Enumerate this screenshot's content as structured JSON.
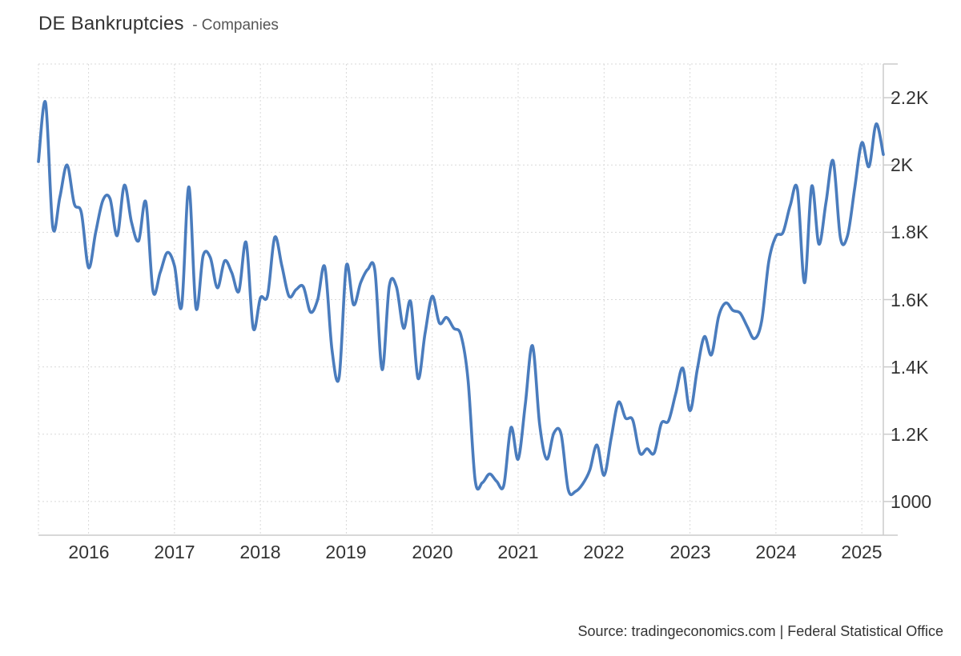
{
  "header": {
    "title": "DE Bankruptcies",
    "subtitle": "- Companies"
  },
  "footer": {
    "source": "Source: tradingeconomics.com | Federal Statistical Office"
  },
  "chart_data": {
    "type": "line",
    "title": "DE Bankruptcies - Companies",
    "legend": "none",
    "grid": "dotted",
    "line_color": "#4a7cbd",
    "axis_color": "#cccccc",
    "grid_color": "#d9d9d9",
    "text_color": "#333333",
    "ylim": [
      900,
      2300
    ],
    "x_range": [
      "2015-06",
      "2025-04"
    ],
    "frequency": "monthly",
    "x_tick_labels": [
      "2016",
      "2017",
      "2018",
      "2019",
      "2020",
      "2021",
      "2022",
      "2023",
      "2024",
      "2025"
    ],
    "y_ticks": [
      {
        "label": "2.2K",
        "value": 2200
      },
      {
        "label": "2K",
        "value": 2000
      },
      {
        "label": "1.8K",
        "value": 1800
      },
      {
        "label": "1.6K",
        "value": 1600
      },
      {
        "label": "1.4K",
        "value": 1400
      },
      {
        "label": "1.2K",
        "value": 1200
      },
      {
        "label": "1000",
        "value": 1000
      }
    ],
    "series": [
      {
        "name": "Companies",
        "start": "2015-06",
        "end": "2025-04",
        "values": [
          2010,
          2185,
          1815,
          1905,
          2000,
          1885,
          1858,
          1695,
          1800,
          1895,
          1900,
          1790,
          1940,
          1830,
          1775,
          1890,
          1625,
          1680,
          1740,
          1700,
          1580,
          1935,
          1575,
          1730,
          1725,
          1635,
          1715,
          1680,
          1625,
          1770,
          1515,
          1605,
          1612,
          1785,
          1700,
          1610,
          1630,
          1638,
          1563,
          1600,
          1697,
          1450,
          1370,
          1700,
          1585,
          1650,
          1690,
          1685,
          1392,
          1640,
          1638,
          1515,
          1593,
          1366,
          1500,
          1610,
          1530,
          1547,
          1515,
          1495,
          1362,
          1062,
          1056,
          1082,
          1060,
          1048,
          1220,
          1126,
          1290,
          1463,
          1230,
          1126,
          1204,
          1200,
          1035,
          1030,
          1052,
          1093,
          1168,
          1078,
          1190,
          1295,
          1248,
          1242,
          1144,
          1157,
          1144,
          1232,
          1240,
          1320,
          1396,
          1270,
          1390,
          1490,
          1436,
          1550,
          1590,
          1568,
          1560,
          1520,
          1484,
          1535,
          1712,
          1788,
          1800,
          1880,
          1928,
          1650,
          1937,
          1765,
          1890,
          2012,
          1784,
          1790,
          1930,
          2066,
          1995,
          2122,
          2031
        ]
      }
    ]
  }
}
